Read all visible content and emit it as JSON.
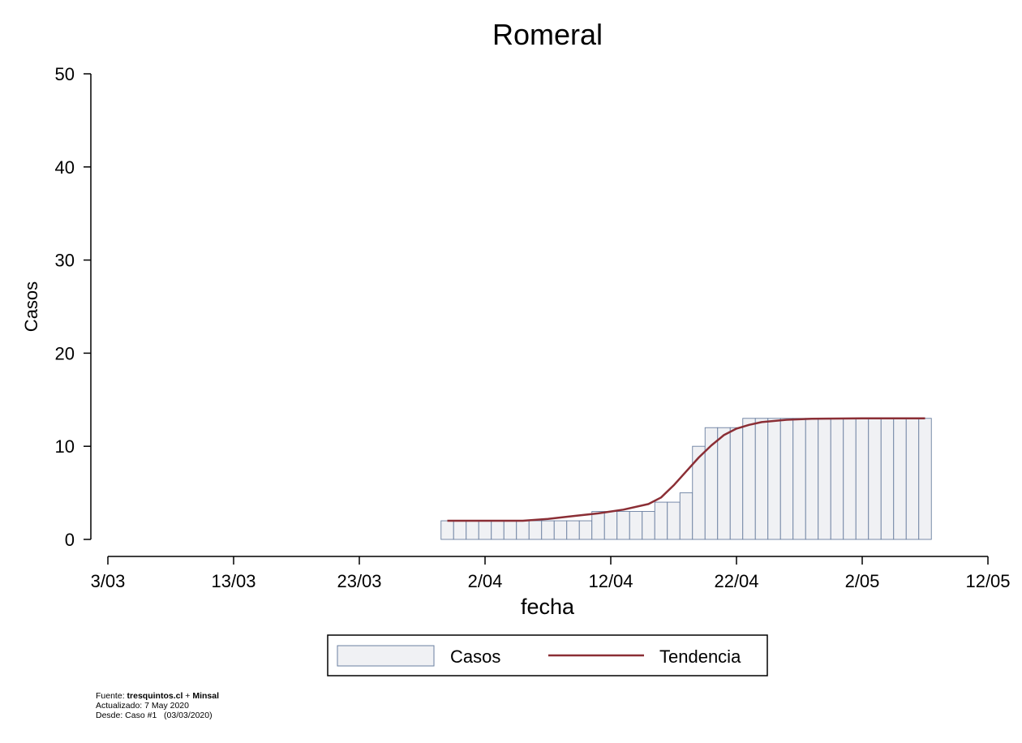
{
  "chart_data": {
    "type": "bar",
    "title": "Romeral",
    "xlabel": "fecha",
    "ylabel": "Casos",
    "ylim": [
      0,
      50
    ],
    "yticks": [
      0,
      10,
      20,
      30,
      40,
      50
    ],
    "xlim": [
      "2020-03-03",
      "2020-05-12"
    ],
    "xticks": [
      {
        "date": "2020-03-03",
        "label": "3/03"
      },
      {
        "date": "2020-03-13",
        "label": "13/03"
      },
      {
        "date": "2020-03-23",
        "label": "23/03"
      },
      {
        "date": "2020-04-02",
        "label": "2/04"
      },
      {
        "date": "2020-04-12",
        "label": "12/04"
      },
      {
        "date": "2020-04-22",
        "label": "22/04"
      },
      {
        "date": "2020-05-02",
        "label": "2/05"
      },
      {
        "date": "2020-05-12",
        "label": "12/05"
      }
    ],
    "legend_position": "bottom",
    "grid": false,
    "colors": {
      "bar_fill": "#f0f1f4",
      "bar_stroke": "#6a7fa0",
      "trend": "#8b2e35"
    },
    "series": [
      {
        "name": "Casos",
        "type": "bar",
        "x": [
          "2020-03-30",
          "2020-03-31",
          "2020-04-01",
          "2020-04-02",
          "2020-04-03",
          "2020-04-04",
          "2020-04-05",
          "2020-04-06",
          "2020-04-07",
          "2020-04-08",
          "2020-04-09",
          "2020-04-10",
          "2020-04-11",
          "2020-04-12",
          "2020-04-13",
          "2020-04-14",
          "2020-04-15",
          "2020-04-16",
          "2020-04-17",
          "2020-04-18",
          "2020-04-19",
          "2020-04-20",
          "2020-04-21",
          "2020-04-22",
          "2020-04-23",
          "2020-04-24",
          "2020-04-25",
          "2020-04-26",
          "2020-04-27",
          "2020-04-28",
          "2020-04-29",
          "2020-04-30",
          "2020-05-01",
          "2020-05-02",
          "2020-05-03",
          "2020-05-04",
          "2020-05-05",
          "2020-05-06",
          "2020-05-07"
        ],
        "values": [
          2,
          2,
          2,
          2,
          2,
          2,
          2,
          2,
          2,
          2,
          2,
          2,
          3,
          3,
          3,
          3,
          3,
          4,
          4,
          5,
          10,
          12,
          12,
          12,
          13,
          13,
          13,
          13,
          13,
          13,
          13,
          13,
          13,
          13,
          13,
          13,
          13,
          13,
          13
        ]
      },
      {
        "name": "Tendencia",
        "type": "line",
        "x": [
          "2020-03-30",
          "2020-04-02",
          "2020-04-05",
          "2020-04-07",
          "2020-04-09",
          "2020-04-11",
          "2020-04-13",
          "2020-04-15",
          "2020-04-16",
          "2020-04-17",
          "2020-04-18",
          "2020-04-19",
          "2020-04-20",
          "2020-04-21",
          "2020-04-22",
          "2020-04-23",
          "2020-04-24",
          "2020-04-26",
          "2020-04-28",
          "2020-05-02",
          "2020-05-07"
        ],
        "values": [
          2,
          2,
          2,
          2.2,
          2.5,
          2.8,
          3.2,
          3.8,
          4.5,
          5.8,
          7.3,
          8.8,
          10.1,
          11.2,
          11.9,
          12.3,
          12.6,
          12.85,
          12.95,
          13,
          13
        ]
      }
    ]
  },
  "footer": {
    "source_prefix": "Fuente: ",
    "source_site": "tresquintos.cl",
    "source_join": " + ",
    "source_org": "Minsal",
    "updated": "Actualizado: 7 May 2020",
    "since": "Desde: Caso #1   (03/03/2020)"
  }
}
